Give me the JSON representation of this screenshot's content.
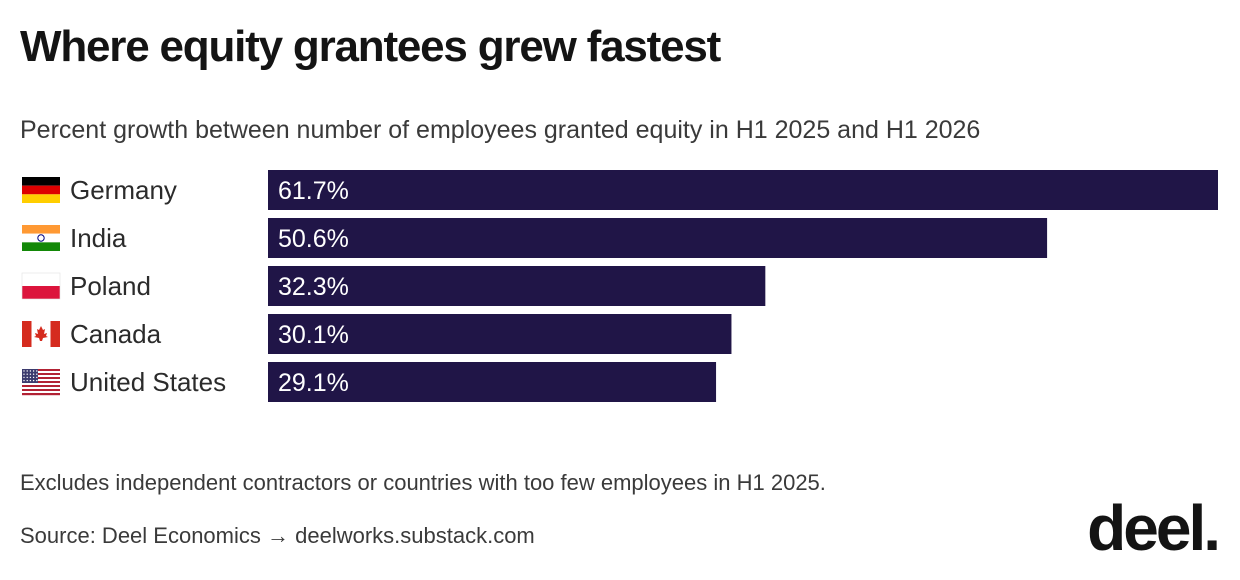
{
  "header": {
    "title": "Where equity grantees grew fastest",
    "subtitle": "Percent growth between number of employees granted equity in H1 2025 and H1 2026"
  },
  "chart_data": {
    "type": "bar",
    "orientation": "horizontal",
    "categories": [
      "Germany",
      "India",
      "Poland",
      "Canada",
      "United States"
    ],
    "flags": [
      "germany-flag-icon",
      "india-flag-icon",
      "poland-flag-icon",
      "canada-flag-icon",
      "united-states-flag-icon"
    ],
    "values": [
      61.7,
      50.6,
      32.3,
      30.1,
      29.1
    ],
    "value_labels": [
      "61.7%",
      "50.6%",
      "32.3%",
      "30.1%",
      "29.1%"
    ],
    "xlim": [
      0,
      61.7
    ],
    "grid": false,
    "legend": "none",
    "bar_color": "#201547"
  },
  "footer": {
    "note": "Excludes independent contractors or countries with too few employees in H1 2025.",
    "source": "Source: Deel Economics → deelworks.substack.com",
    "logo": "deel."
  }
}
